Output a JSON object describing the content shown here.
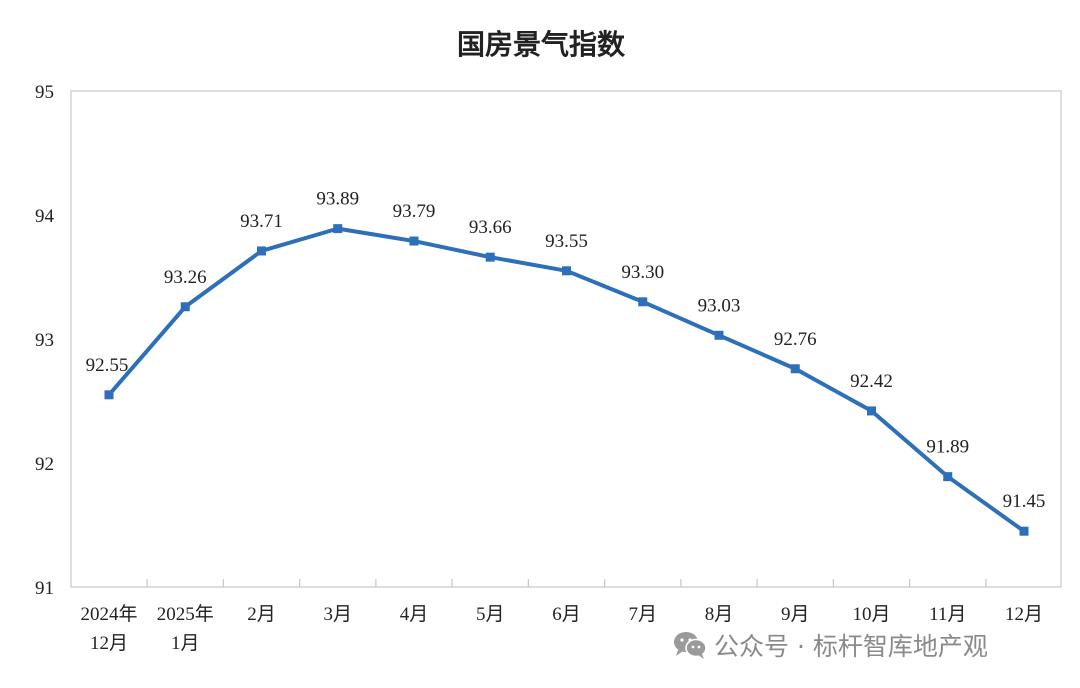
{
  "chart_data": {
    "type": "line",
    "title": "国房景气指数",
    "categories": [
      [
        "2024年",
        "12月"
      ],
      [
        "2025年",
        "1月"
      ],
      [
        "2月"
      ],
      [
        "3月"
      ],
      [
        "4月"
      ],
      [
        "5月"
      ],
      [
        "6月"
      ],
      [
        "7月"
      ],
      [
        "8月"
      ],
      [
        "9月"
      ],
      [
        "10月"
      ],
      [
        "11月"
      ],
      [
        "12月"
      ]
    ],
    "series": [
      {
        "values": [
          92.55,
          93.26,
          93.71,
          93.89,
          93.79,
          93.66,
          93.55,
          93.3,
          93.03,
          92.76,
          92.42,
          91.89,
          91.45
        ],
        "labels": [
          "92.55",
          "93.26",
          "93.71",
          "93.89",
          "93.79",
          "93.66",
          "93.55",
          "93.30",
          "93.03",
          "92.76",
          "92.42",
          "91.89",
          "91.45"
        ],
        "color": "#2e6fba"
      }
    ],
    "ylim": [
      91,
      95
    ],
    "yticks": [
      "91",
      "92",
      "93",
      "94",
      "95"
    ],
    "grid": false,
    "legend": "none"
  },
  "watermark": {
    "icon": "wechat-icon",
    "text": "公众号 · 标杆智库地产观"
  }
}
